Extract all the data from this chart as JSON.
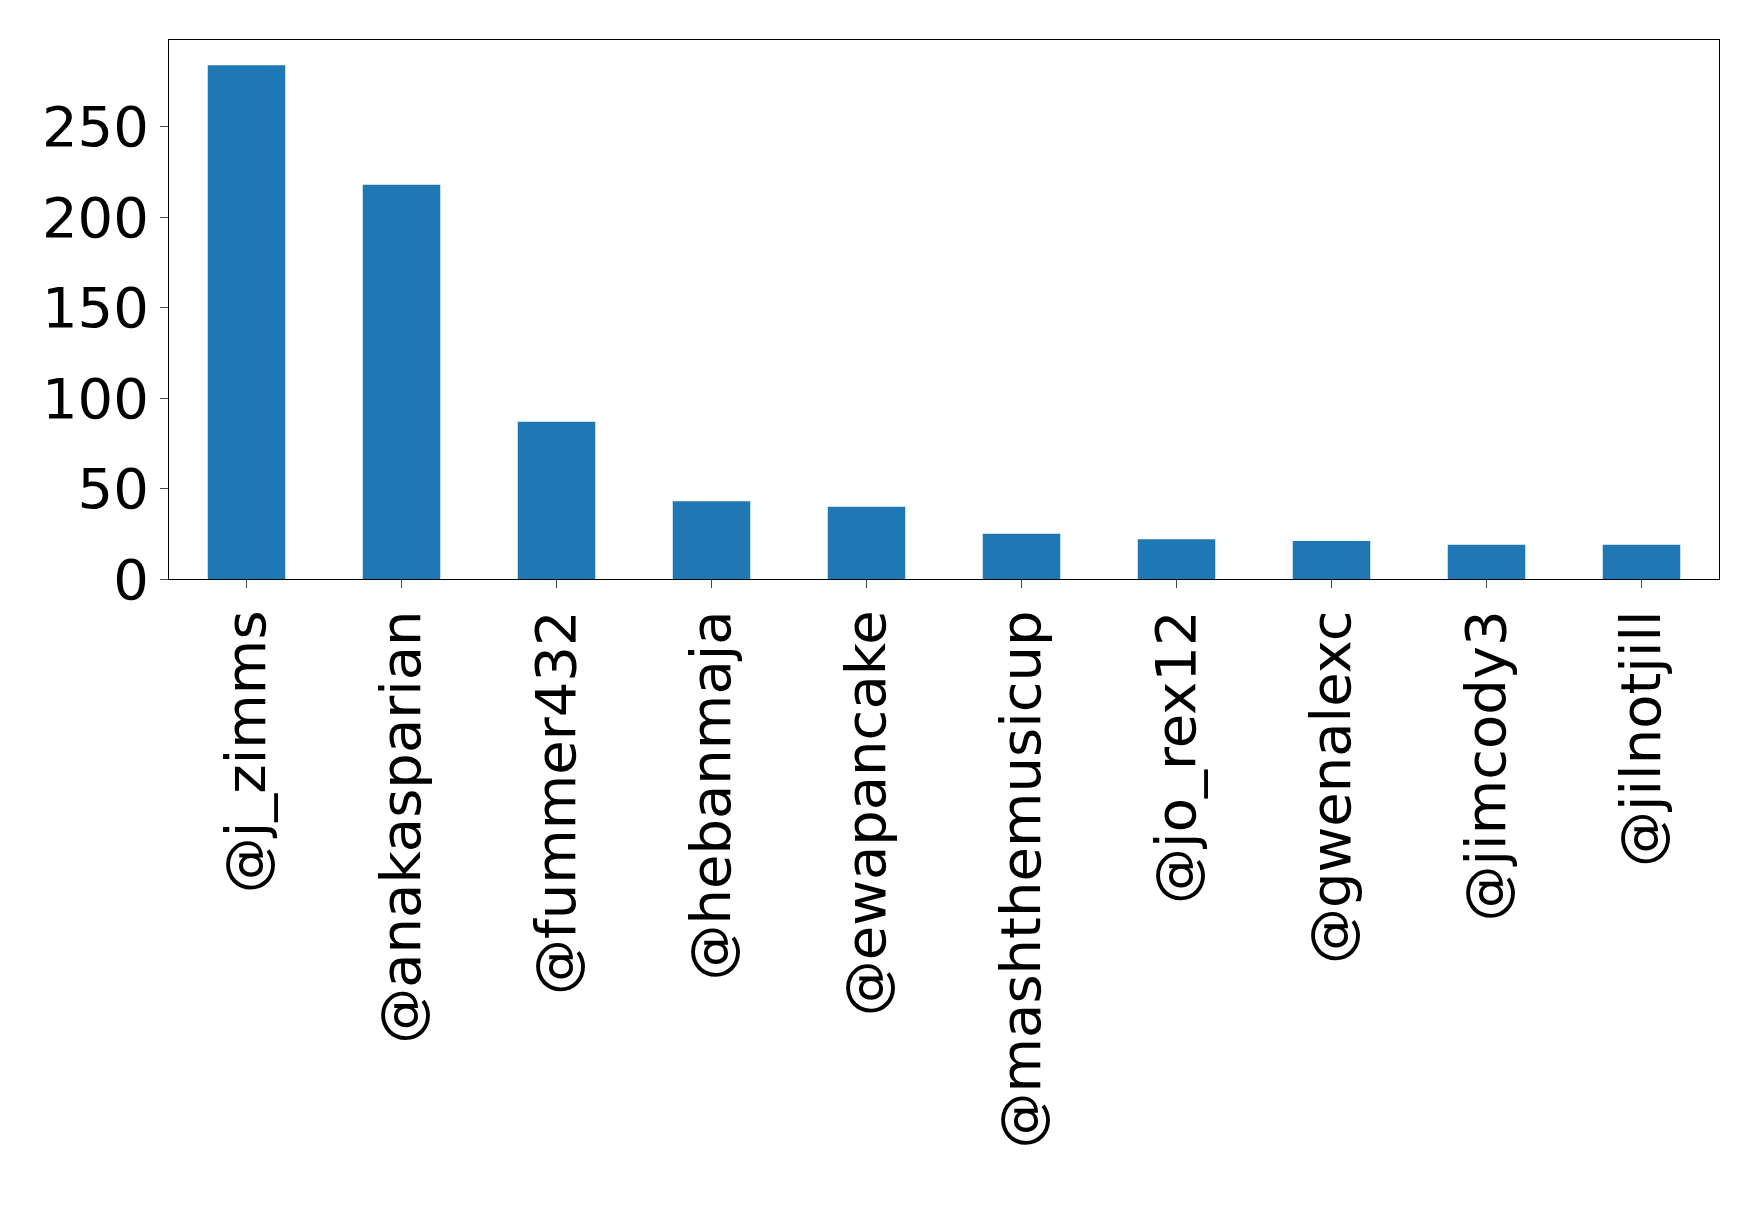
{
  "chart_data": {
    "type": "bar",
    "categories": [
      "@j_zimms",
      "@anakasparian",
      "@fummer432",
      "@hebanmaja",
      "@ewapancake",
      "@mashthemusicup",
      "@jo_rex12",
      "@gwenalexc",
      "@jimcody3",
      "@jilnotjill"
    ],
    "values": [
      284,
      218,
      87,
      43,
      40,
      25,
      22,
      21,
      19,
      19
    ],
    "color": "#1f77b4",
    "ylim": [
      0,
      298
    ],
    "yticks": [
      0,
      50,
      100,
      150,
      200,
      250
    ]
  }
}
